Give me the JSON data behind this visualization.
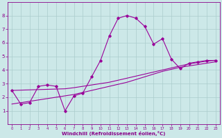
{
  "xlabel": "Windchill (Refroidissement éolien,°C)",
  "background_color": "#cce8e8",
  "grid_color": "#aacccc",
  "line_color": "#990099",
  "xlim": [
    -0.5,
    23.5
  ],
  "ylim": [
    0,
    9
  ],
  "xticks": [
    0,
    1,
    2,
    3,
    4,
    5,
    6,
    7,
    8,
    9,
    10,
    11,
    12,
    13,
    14,
    15,
    16,
    17,
    18,
    19,
    20,
    21,
    22,
    23
  ],
  "yticks": [
    1,
    2,
    3,
    4,
    5,
    6,
    7,
    8
  ],
  "series1_x": [
    0,
    1,
    2,
    3,
    4,
    5,
    6,
    7,
    8,
    9,
    10,
    11,
    12,
    13,
    14,
    15,
    16,
    17,
    18,
    19,
    20,
    21,
    22,
    23
  ],
  "series1_y": [
    2.5,
    1.5,
    1.6,
    2.8,
    2.9,
    2.8,
    1.0,
    2.1,
    2.3,
    3.5,
    4.7,
    6.5,
    7.8,
    8.0,
    7.8,
    7.2,
    5.9,
    6.3,
    4.8,
    4.1,
    4.5,
    4.6,
    4.7,
    4.7
  ],
  "series2_x": [
    0,
    1,
    2,
    3,
    4,
    5,
    6,
    7,
    8,
    9,
    10,
    11,
    12,
    13,
    14,
    15,
    16,
    17,
    18,
    19,
    20,
    21,
    22,
    23
  ],
  "series2_y": [
    1.5,
    1.6,
    1.7,
    1.8,
    1.9,
    2.0,
    2.1,
    2.2,
    2.35,
    2.5,
    2.65,
    2.8,
    2.95,
    3.1,
    3.3,
    3.5,
    3.7,
    3.9,
    4.05,
    4.2,
    4.3,
    4.4,
    4.5,
    4.6
  ],
  "series3_x": [
    0,
    1,
    2,
    3,
    4,
    5,
    6,
    7,
    8,
    9,
    10,
    11,
    12,
    13,
    14,
    15,
    16,
    17,
    18,
    19,
    20,
    21,
    22,
    23
  ],
  "series3_y": [
    2.5,
    2.52,
    2.54,
    2.56,
    2.58,
    2.6,
    2.62,
    2.7,
    2.8,
    2.9,
    3.0,
    3.1,
    3.25,
    3.4,
    3.55,
    3.7,
    3.85,
    4.0,
    4.15,
    4.3,
    4.45,
    4.55,
    4.65,
    4.72
  ]
}
